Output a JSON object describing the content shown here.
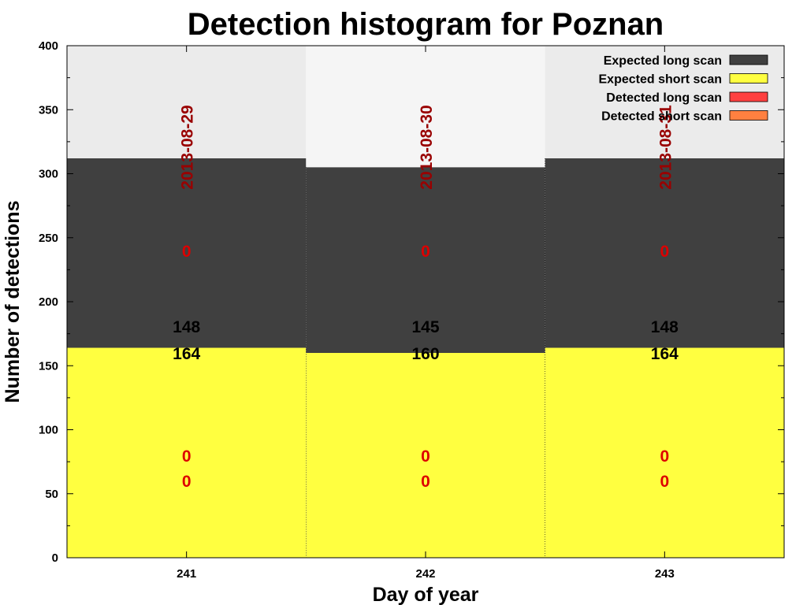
{
  "chart_data": {
    "type": "bar",
    "title": "Detection histogram for Poznan",
    "xlabel": "Day of year",
    "ylabel": "Number of detections",
    "ylim": [
      0,
      400
    ],
    "y_ticks": [
      0,
      50,
      100,
      150,
      200,
      250,
      300,
      350,
      400
    ],
    "categories": [
      "241",
      "242",
      "243"
    ],
    "dates": [
      "2013-08-29",
      "2013-08-30",
      "2013-08-31"
    ],
    "background_totals": [
      400,
      400,
      400
    ],
    "series": [
      {
        "name": "Expected long scan",
        "color": "#404040",
        "values": [
          148,
          145,
          148
        ]
      },
      {
        "name": "Expected short scan",
        "color": "#ffff40",
        "values": [
          164,
          160,
          164
        ]
      },
      {
        "name": "Detected long scan",
        "color": "#ff4040",
        "values": [
          0,
          0,
          0
        ]
      },
      {
        "name": "Detected short scan",
        "color": "#ff8040",
        "values": [
          0,
          0,
          0
        ]
      }
    ],
    "legend_position": "top-right",
    "grid": false,
    "bar_label_colors": {
      "date": "#990000",
      "count": "#000000",
      "zero": "#dd0000"
    },
    "background_colors": [
      "#ebebeb",
      "#f5f5f5",
      "#ebebeb"
    ]
  }
}
